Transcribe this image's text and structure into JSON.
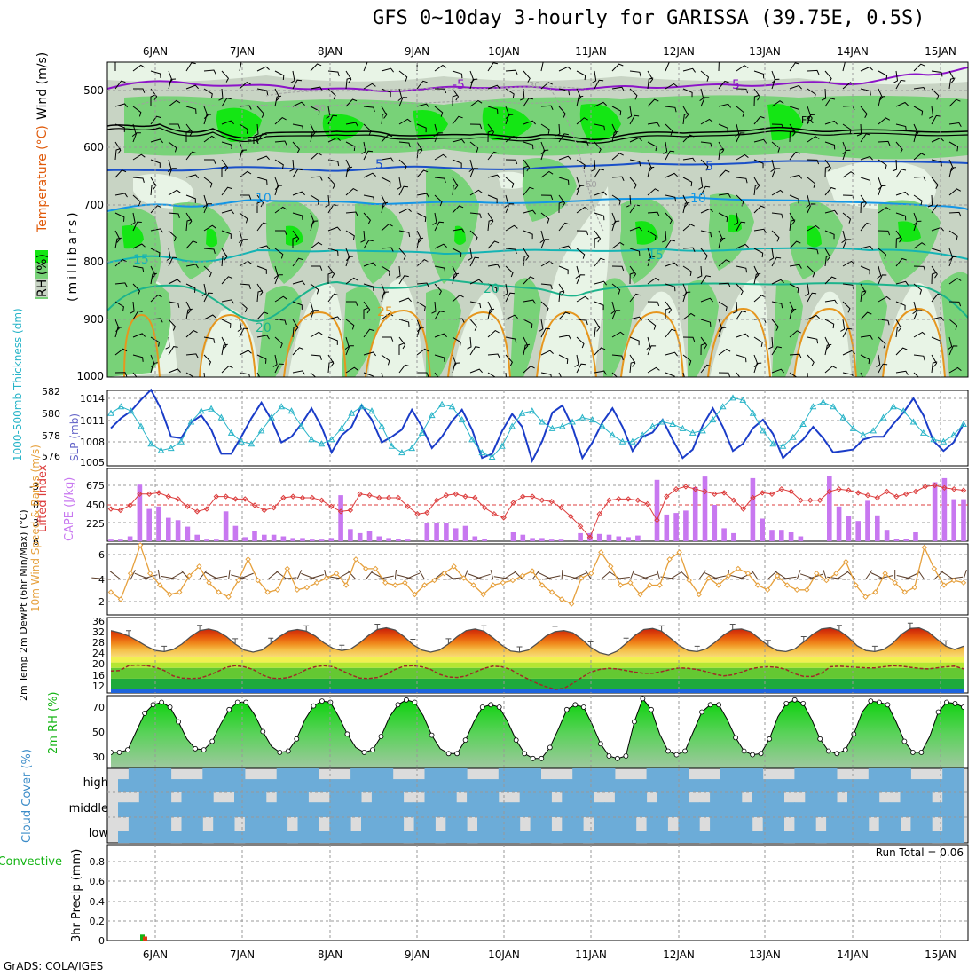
{
  "title": "GFS 0~10day 3-hourly for GARISSA (39.75E, 0.5S)",
  "credit": "GrADS: COLA/IGES",
  "date_labels": [
    "6JAN",
    "7JAN",
    "8JAN",
    "9JAN",
    "10JAN",
    "11JAN",
    "12JAN",
    "13JAN",
    "14JAN",
    "15JAN"
  ],
  "colors": {
    "rh_light": "#e8f4e6",
    "rh_mid": "#c8d4c4",
    "rh_green": "#78d278",
    "rh_bright": "#14e614",
    "temp_purple": "#8c14c8",
    "temp_blue": "#1a50c8",
    "temp_sky": "#1496e6",
    "temp_teal": "#14b4b4",
    "temp_orange": "#e6961e",
    "slp": "#1a3cc8",
    "thick": "#28b4c8",
    "cape": "#c878f0",
    "li": "#dc3c3c",
    "wind10": "#e6a03c",
    "cloud": "#6cacd8",
    "cloud_gap": "#dcdcdc"
  },
  "chart_data": [
    {
      "panel": "upper-air",
      "type": "heatmap",
      "ylabel_parts": [
        "RH (%)",
        "Temperature (°C)",
        "Wind (m/s)"
      ],
      "ylabel_unit": "(millibars)",
      "yticks": [
        500,
        600,
        700,
        800,
        900,
        1000
      ],
      "ylim": [
        1000,
        450
      ],
      "contour_labels": [
        "-5",
        "-5",
        "5",
        "5",
        "10",
        "10",
        "15",
        "15",
        "20",
        "20",
        "25",
        "FR",
        "FR",
        "30",
        "50",
        "50"
      ]
    },
    {
      "panel": "slp-thickness",
      "type": "line",
      "ylabel_left": "1000-500mb Thickness (dm)",
      "ylabel_right": "SLP (mb)",
      "yticks_left": [
        "582",
        "580",
        "578",
        "576"
      ],
      "yticks_right": [
        "1014",
        "1011",
        "1008",
        "1005"
      ],
      "series": [
        {
          "name": "SLP (mb)",
          "values": [
            1009.8,
            1011.2,
            1012.2,
            1013.8,
            1015.2,
            1012.5,
            1008.6,
            1008.4,
            1010.6,
            1011.6,
            1009.6,
            1006.2,
            1006.2,
            1008.6,
            1011.2,
            1013.4,
            1011.0,
            1007.8,
            1008.6,
            1010.4,
            1012.6,
            1010.0,
            1006.4,
            1008.8,
            1010.0,
            1013.0,
            1011.0,
            1007.8,
            1008.6,
            1009.6,
            1012.4,
            1010.0,
            1007.0,
            1008.6,
            1010.8,
            1012.4,
            1009.6,
            1005.6,
            1006.2,
            1009.4,
            1011.8,
            1010.0,
            1005.2,
            1008.0,
            1012.0,
            1013.0,
            1010.0,
            1005.6,
            1007.8,
            1010.6,
            1012.6,
            1010.0,
            1006.6,
            1008.6,
            1009.2,
            1011.0,
            1008.2,
            1005.6,
            1006.8,
            1010.2,
            1012.6,
            1010.0,
            1006.6,
            1007.6,
            1009.8,
            1011.0,
            1009.0,
            1005.6,
            1007.0,
            1008.2,
            1010.0,
            1008.4,
            1006.4,
            1006.6,
            1006.8,
            1008.2,
            1008.6,
            1008.6,
            1010.4,
            1012.0,
            1014.0,
            1011.6,
            1008.0,
            1006.6,
            1007.8,
            1010.4
          ]
        },
        {
          "name": "1000-500mb Thickness (dm)",
          "values": [
            580.0,
            580.6,
            580.2,
            578.8,
            577.2,
            576.6,
            576.8,
            577.4,
            579.2,
            580.2,
            580.4,
            579.6,
            578.2,
            577.4,
            577.2,
            578.4,
            579.6,
            580.6,
            580.2,
            578.8,
            577.6,
            577.2,
            577.6,
            578.6,
            580.0,
            580.6,
            580.2,
            578.8,
            577.0,
            576.4,
            576.8,
            578.2,
            579.8,
            580.8,
            580.6,
            579.4,
            577.6,
            576.4,
            576.0,
            577.0,
            578.8,
            580.0,
            580.2,
            579.2,
            578.6,
            578.8,
            579.2,
            579.6,
            579.4,
            578.8,
            578.0,
            577.4,
            577.4,
            578.0,
            578.8,
            579.2,
            579.0,
            578.6,
            578.2,
            578.4,
            579.4,
            580.6,
            581.4,
            581.2,
            580.0,
            578.4,
            577.2,
            577.0,
            577.8,
            579.0,
            580.6,
            581.0,
            580.6,
            579.6,
            578.6,
            578.0,
            578.4,
            579.6,
            580.6,
            580.2,
            579.2,
            578.2,
            577.6,
            577.4,
            578.0,
            579.0
          ]
        }
      ]
    },
    {
      "panel": "cape-li",
      "type": "bar",
      "ylabel_left": "Lifted Index",
      "ylabel_right": "CAPE (J/kg)",
      "yticks_left": [
        "-3",
        "0",
        "3",
        "6"
      ],
      "yticks_right": [
        "675",
        "450",
        "225"
      ],
      "series": [
        {
          "name": "CAPE (J/kg)",
          "values": [
            20,
            20,
            60,
            700,
            400,
            430,
            290,
            260,
            180,
            80,
            20,
            20,
            370,
            190,
            50,
            130,
            80,
            80,
            60,
            40,
            40,
            20,
            20,
            40,
            570,
            150,
            100,
            130,
            60,
            40,
            30,
            20,
            0,
            230,
            230,
            220,
            160,
            190,
            60,
            30,
            0,
            0,
            110,
            80,
            40,
            40,
            20,
            20,
            0,
            100,
            100,
            90,
            80,
            60,
            50,
            70,
            0,
            760,
            330,
            350,
            380,
            670,
            800,
            450,
            160,
            100,
            0,
            780,
            280,
            140,
            140,
            110,
            60,
            0,
            0,
            810,
            430,
            310,
            250,
            500,
            320,
            140,
            30,
            30,
            110,
            0,
            730,
            780,
            520,
            520
          ]
        },
        {
          "name": "Lifted Index",
          "values": [
            0.8,
            1.0,
            0.2,
            -1.6,
            -1.6,
            -1.8,
            -1.2,
            -0.8,
            0.4,
            1.2,
            0.8,
            -1.2,
            -1.2,
            -0.8,
            -0.8,
            0.2,
            1.0,
            0.6,
            -1.0,
            -1.2,
            -1.0,
            -1.0,
            -0.6,
            0.4,
            1.2,
            1.0,
            -1.6,
            -1.4,
            -1.0,
            -1.0,
            -1.0,
            0.4,
            1.6,
            1.4,
            -0.6,
            -1.4,
            -1.6,
            -1.2,
            -1.0,
            0.6,
            1.6,
            2.2,
            -0.2,
            -1.2,
            -1.2,
            -0.6,
            -0.4,
            0.6,
            2.0,
            3.6,
            5.4,
            1.6,
            -0.6,
            -0.8,
            -0.8,
            -0.6,
            0.0,
            2.6,
            -1.2,
            -2.4,
            -2.8,
            -2.4,
            -2.0,
            -1.6,
            -1.8,
            -0.6,
            0.8,
            -1.0,
            -1.8,
            -1.6,
            -2.4,
            -2.0,
            -0.6,
            -0.6,
            -0.6,
            -2.0,
            -2.4,
            -2.2,
            -1.8,
            -1.4,
            -1.0,
            -2.0,
            -1.2,
            -1.6,
            -2.0,
            -2.8,
            -3.0,
            -2.6,
            -2.4,
            -2.2
          ]
        }
      ]
    },
    {
      "panel": "wind10m",
      "type": "line",
      "ylabel": "10m Wind Speed & Barbs (m/s)",
      "yticks": [
        "6",
        "4",
        "2"
      ],
      "ylim": [
        1.5,
        7
      ],
      "series": [
        {
          "name": "10m Wind Speed",
          "values": [
            2.8,
            2.2,
            4.4,
            6.8,
            4.4,
            3.4,
            2.6,
            2.8,
            4.2,
            5.0,
            3.6,
            2.8,
            2.4,
            3.8,
            5.6,
            3.8,
            2.8,
            3.0,
            4.8,
            3.0,
            3.2,
            3.6,
            4.0,
            4.4,
            3.4,
            5.6,
            4.8,
            4.8,
            3.6,
            3.4,
            3.6,
            2.6,
            3.4,
            3.8,
            4.4,
            5.0,
            4.0,
            3.4,
            2.6,
            3.4,
            3.6,
            3.8,
            4.2,
            4.6,
            3.4,
            2.8,
            2.2,
            1.8,
            4.0,
            4.4,
            6.2,
            5.0,
            3.4,
            3.6,
            2.6,
            3.4,
            3.4,
            5.6,
            6.2,
            3.8,
            2.6,
            4.0,
            3.4,
            4.2,
            4.8,
            4.4,
            3.4,
            3.0,
            4.2,
            3.4,
            3.0,
            3.0,
            4.4,
            3.8,
            4.4,
            5.4,
            3.4,
            2.4,
            2.8,
            4.4,
            3.6,
            2.8,
            3.2,
            6.6,
            4.8,
            3.4,
            3.8,
            3.6
          ]
        }
      ]
    },
    {
      "panel": "temperature",
      "type": "area",
      "ylabel": "2m Temp 2m DewPt (6hr Min/Max) (°C)",
      "yticks": [
        "36",
        "32",
        "28",
        "24",
        "20",
        "16",
        "12"
      ],
      "ylim": [
        10,
        37
      ],
      "series": [
        {
          "name": "2m Temp",
          "values": [
            33.8,
            33.0,
            31.8,
            30.0,
            28.0,
            26.4,
            26.0,
            26.8,
            28.8,
            31.6,
            33.8,
            34.4,
            33.6,
            31.6,
            28.8,
            26.6,
            25.8,
            26.6,
            29.0,
            31.6,
            33.6,
            34.2,
            33.6,
            31.8,
            29.2,
            27.2,
            26.4,
            27.0,
            29.2,
            32.0,
            34.2,
            34.8,
            34.0,
            31.6,
            28.6,
            26.6,
            25.8,
            26.6,
            28.8,
            31.6,
            33.8,
            34.4,
            33.6,
            31.2,
            28.4,
            26.2,
            25.8,
            26.6,
            29.0,
            31.8,
            33.4,
            33.8,
            33.0,
            30.6,
            27.6,
            25.6,
            24.8,
            26.2,
            29.0,
            32.0,
            34.2,
            34.6,
            33.6,
            31.0,
            28.2,
            26.4,
            26.0,
            27.0,
            29.4,
            32.2,
            34.2,
            34.4,
            33.4,
            30.8,
            28.2,
            26.4,
            26.0,
            27.0,
            29.6,
            32.4,
            34.4,
            34.8,
            33.8,
            31.4,
            28.2,
            26.4,
            26.0,
            26.8,
            29.0,
            32.4,
            34.6,
            34.8,
            33.4,
            30.6,
            28.0,
            26.8,
            28.0
          ]
        },
        {
          "name": "2m DewPt",
          "values": [
            18.8,
            19.0,
            20.8,
            21.0,
            20.8,
            20.2,
            19.0,
            17.0,
            16.2,
            16.0,
            16.2,
            17.2,
            18.6,
            20.2,
            20.8,
            20.4,
            19.4,
            17.4,
            16.2,
            16.0,
            16.4,
            17.6,
            19.4,
            20.4,
            20.8,
            20.4,
            19.0,
            17.4,
            16.2,
            16.0,
            16.4,
            17.6,
            19.4,
            20.6,
            20.8,
            20.4,
            19.4,
            17.6,
            16.6,
            16.4,
            17.0,
            18.4,
            19.8,
            20.6,
            20.4,
            19.4,
            17.4,
            15.8,
            14.2,
            13.0,
            12.0,
            12.4,
            14.2,
            16.4,
            18.4,
            19.4,
            19.8,
            19.6,
            19.0,
            18.4,
            18.0,
            18.0,
            18.6,
            19.4,
            20.0,
            19.8,
            19.4,
            18.6,
            17.6,
            17.0,
            17.4,
            18.4,
            19.6,
            20.2,
            20.4,
            20.2,
            19.4,
            17.8,
            16.8,
            16.8,
            18.0,
            20.4,
            20.6,
            20.4,
            20.2,
            20.0,
            20.0,
            20.4,
            20.8,
            20.6,
            20.2,
            19.8,
            19.6,
            20.0,
            20.4,
            20.6,
            19.6
          ]
        }
      ]
    },
    {
      "panel": "rh",
      "type": "area",
      "ylabel": "2m RH (%)",
      "yticks": [
        "70",
        "50",
        "30"
      ],
      "ylim": [
        25,
        82
      ],
      "series": [
        {
          "name": "2m RH",
          "values": [
            33,
            33,
            35,
            50,
            65,
            72,
            74,
            70,
            58,
            44,
            36,
            35,
            42,
            56,
            68,
            74,
            74,
            64,
            50,
            38,
            33,
            34,
            44,
            60,
            71,
            75,
            74,
            62,
            48,
            37,
            33,
            35,
            46,
            62,
            72,
            76,
            74,
            63,
            47,
            36,
            32,
            32,
            43,
            58,
            70,
            72,
            70,
            58,
            43,
            32,
            28,
            28,
            37,
            52,
            68,
            72,
            70,
            56,
            40,
            30,
            28,
            30,
            58,
            77,
            68,
            48,
            34,
            31,
            34,
            50,
            66,
            72,
            72,
            60,
            45,
            34,
            31,
            32,
            44,
            62,
            73,
            76,
            73,
            60,
            44,
            34,
            32,
            35,
            48,
            66,
            75,
            74,
            72,
            58,
            42,
            33,
            33,
            46,
            66,
            74,
            73,
            70
          ]
        }
      ]
    },
    {
      "panel": "cloud",
      "type": "heatmap",
      "ylabel": "Cloud Cover (%)",
      "categories": [
        "high",
        "middle",
        "low"
      ]
    },
    {
      "panel": "precip",
      "type": "bar",
      "ylabel": "3hr Precip (mm)",
      "ylabel_left": "Total / Rain Convective",
      "yticks": [
        "0.8",
        "0.6",
        "0.4",
        "0.2",
        "0"
      ],
      "ylim": [
        0,
        0.95
      ],
      "annotation": "Run Total = 0.06",
      "series": [
        {
          "name": "Total / Rain",
          "values": [
            0,
            0,
            0,
            0.02
          ]
        },
        {
          "name": "Convective",
          "values": [
            0,
            0,
            0,
            0.04
          ]
        }
      ]
    }
  ]
}
